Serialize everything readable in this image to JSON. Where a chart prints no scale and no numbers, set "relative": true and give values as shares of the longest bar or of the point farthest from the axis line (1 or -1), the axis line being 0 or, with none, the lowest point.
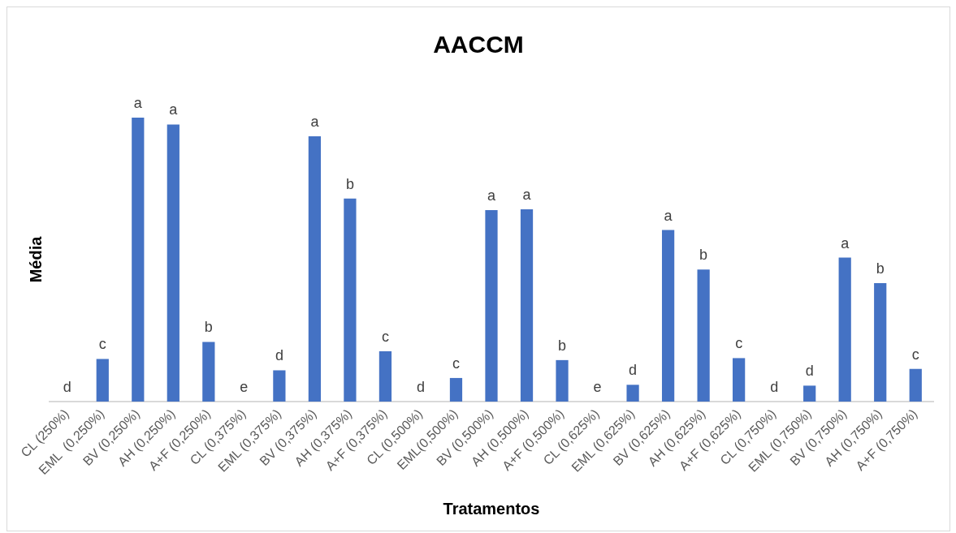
{
  "chart_data": {
    "type": "bar",
    "title": "AACCM",
    "xlabel": "Tratamentos",
    "ylabel": "Média",
    "relative": true,
    "grid": false,
    "legend": false,
    "categories": [
      "CL (250%)",
      "EML  (0,250%)",
      "BV (0,250%)",
      "AH (0,250%)",
      "A+F (0,250%)",
      "CL (0,375%)",
      "EML (0,375%)",
      "BV (0,375%)",
      "AH (0,375%)",
      "A+F (0,375%)",
      "CL (0,500%)",
      "EML(0,500%)",
      "BV (0,500%)",
      "AH (0,500%)",
      "A+F (0,500%)",
      "CL (0,625%)",
      "EML (0,625%)",
      "BV (0,625%)",
      "AH (0,625%)",
      "A+F (0,625%)",
      "CL (0,750%)",
      "EML (0,750%)",
      "BV (0,750%)",
      "AH (0,750%)",
      "A+F (0,750%)"
    ],
    "values": [
      0,
      0.15,
      1,
      0.976,
      0.21,
      0,
      0.11,
      0.934,
      0.715,
      0.177,
      0,
      0.083,
      0.674,
      0.677,
      0.146,
      0,
      0.059,
      0.604,
      0.465,
      0.153,
      0,
      0.056,
      0.507,
      0.417,
      0.115
    ],
    "annotations": [
      {
        "text": "d",
        "x": "CL (250%)",
        "y": 0
      },
      {
        "text": "c",
        "x": "EML  (0,250%)",
        "y": 0.15
      },
      {
        "text": "a",
        "x": "BV (0,250%)",
        "y": 1
      },
      {
        "text": "a",
        "x": "AH (0,250%)",
        "y": 0.976
      },
      {
        "text": "b",
        "x": "A+F (0,250%)",
        "y": 0.21
      },
      {
        "text": "e",
        "x": "CL (0,375%)",
        "y": 0
      },
      {
        "text": "d",
        "x": "EML (0,375%)",
        "y": 0.11
      },
      {
        "text": "a",
        "x": "BV (0,375%)",
        "y": 0.934
      },
      {
        "text": "b",
        "x": "AH (0,375%)",
        "y": 0.715
      },
      {
        "text": "c",
        "x": "A+F (0,375%)",
        "y": 0.177
      },
      {
        "text": "d",
        "x": "CL (0,500%)",
        "y": 0
      },
      {
        "text": "c",
        "x": "EML(0,500%)",
        "y": 0.083
      },
      {
        "text": "a",
        "x": "BV (0,500%)",
        "y": 0.674
      },
      {
        "text": "a",
        "x": "AH (0,500%)",
        "y": 0.677
      },
      {
        "text": "b",
        "x": "A+F (0,500%)",
        "y": 0.146
      },
      {
        "text": "e",
        "x": "CL (0,625%)",
        "y": 0
      },
      {
        "text": "d",
        "x": "EML (0,625%)",
        "y": 0.059
      },
      {
        "text": "a",
        "x": "BV (0,625%)",
        "y": 0.604
      },
      {
        "text": "b",
        "x": "AH (0,625%)",
        "y": 0.465
      },
      {
        "text": "c",
        "x": "A+F (0,625%)",
        "y": 0.153
      },
      {
        "text": "d",
        "x": "CL (0,750%)",
        "y": 0
      },
      {
        "text": "d",
        "x": "EML (0,750%)",
        "y": 0.056
      },
      {
        "text": "a",
        "x": "BV (0,750%)",
        "y": 0.507
      },
      {
        "text": "b",
        "x": "AH (0,750%)",
        "y": 0.417
      },
      {
        "text": "c",
        "x": "A+F (0,750%)",
        "y": 0.115
      }
    ],
    "color": "#4472c4"
  }
}
